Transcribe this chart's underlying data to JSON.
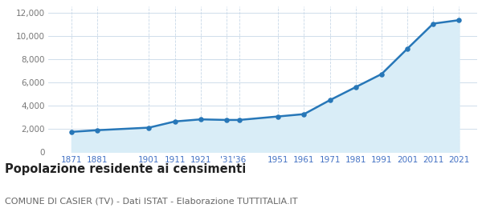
{
  "years": [
    1871,
    1881,
    1901,
    1911,
    1921,
    1931,
    1936,
    1951,
    1961,
    1971,
    1981,
    1991,
    2001,
    2011,
    2021
  ],
  "population": [
    1756,
    1900,
    2120,
    2650,
    2830,
    2780,
    2780,
    3080,
    3280,
    4480,
    5600,
    6720,
    8900,
    11050,
    11350
  ],
  "line_color": "#2777b8",
  "fill_color": "#d9edf7",
  "marker_color": "#2777b8",
  "bg_color": "#ffffff",
  "grid_color_v": "#c8d8e8",
  "grid_color_h": "#c8d8e8",
  "title": "Popolazione residente ai censimenti",
  "subtitle": "COMUNE DI CASIER (TV) - Dati ISTAT - Elaborazione TUTTITALIA.IT",
  "ylim": [
    0,
    12500
  ],
  "yticks": [
    0,
    2000,
    4000,
    6000,
    8000,
    10000,
    12000
  ],
  "ytick_labels": [
    "0",
    "2,000",
    "4,000",
    "6,000",
    "8,000",
    "10,000",
    "12,000"
  ],
  "title_fontsize": 10.5,
  "subtitle_fontsize": 8,
  "tick_fontsize": 7.5,
  "xtick_color": "#4472c4",
  "ytick_color": "#777777"
}
